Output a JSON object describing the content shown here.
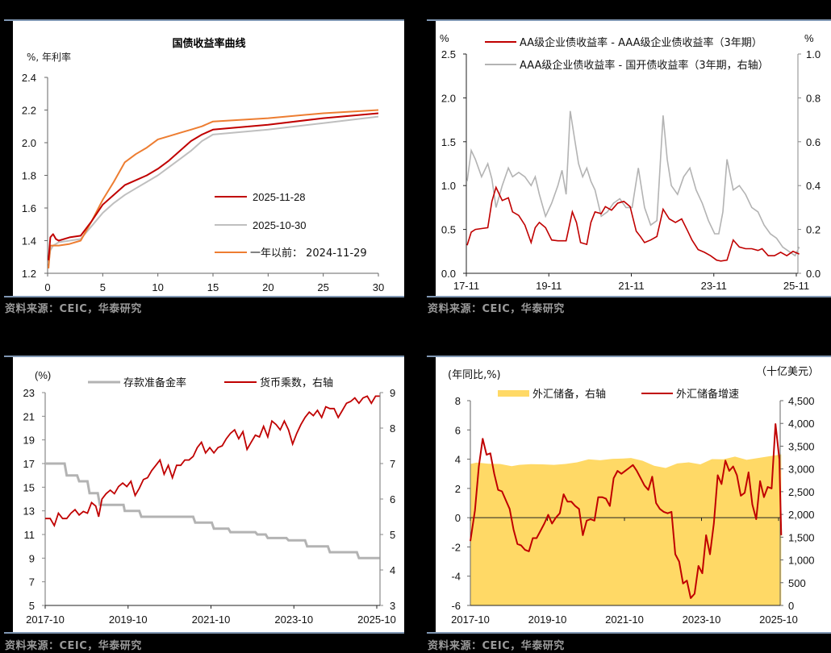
{
  "page": {
    "background": "#000000",
    "panel_background": "#ffffff",
    "rule_color": "#8097b3",
    "source_note": "资料来源：CEIC，华泰研究"
  },
  "chart_data": [
    {
      "id": "yield-curve",
      "type": "line",
      "title": "国债收益率曲线",
      "ylabel": "%, 年利率",
      "xlabel": "",
      "xlim": [
        0,
        30
      ],
      "ylim": [
        1.2,
        2.4
      ],
      "xticks": [
        0,
        5,
        10,
        15,
        20,
        25,
        30
      ],
      "yticks": [
        "1.2",
        "1.4",
        "1.6",
        "1.8",
        "2.0",
        "2.2",
        "2.4"
      ],
      "grid": false,
      "legend_position": "inside-right",
      "series": [
        {
          "name": "2025-11-28",
          "color": "#c00000",
          "x": [
            0.08,
            0.25,
            0.5,
            0.75,
            1,
            2,
            3,
            4,
            5,
            6,
            7,
            8,
            9,
            10,
            11,
            12,
            13,
            14,
            15,
            20,
            25,
            30
          ],
          "y": [
            1.28,
            1.42,
            1.44,
            1.41,
            1.4,
            1.42,
            1.43,
            1.52,
            1.62,
            1.68,
            1.74,
            1.77,
            1.8,
            1.84,
            1.89,
            1.95,
            2.01,
            2.05,
            2.08,
            2.11,
            2.15,
            2.18
          ]
        },
        {
          "name": "2025-10-30",
          "color": "#bfbfbf",
          "x": [
            0.08,
            0.25,
            0.5,
            0.75,
            1,
            2,
            3,
            4,
            5,
            6,
            7,
            8,
            9,
            10,
            11,
            12,
            13,
            14,
            15,
            20,
            25,
            30
          ],
          "y": [
            1.26,
            1.34,
            1.37,
            1.38,
            1.39,
            1.4,
            1.41,
            1.49,
            1.57,
            1.63,
            1.68,
            1.72,
            1.76,
            1.8,
            1.85,
            1.9,
            1.95,
            2.01,
            2.05,
            2.08,
            2.12,
            2.16
          ]
        },
        {
          "name": "一年以前： 2024-11-29",
          "color": "#ed7d31",
          "x": [
            0.08,
            0.25,
            0.5,
            0.75,
            1,
            2,
            3,
            4,
            5,
            6,
            7,
            8,
            9,
            10,
            11,
            12,
            13,
            14,
            15,
            20,
            25,
            30
          ],
          "y": [
            1.23,
            1.37,
            1.37,
            1.37,
            1.37,
            1.38,
            1.4,
            1.52,
            1.65,
            1.76,
            1.88,
            1.93,
            1.97,
            2.02,
            2.04,
            2.06,
            2.08,
            2.1,
            2.13,
            2.15,
            2.18,
            2.2
          ]
        }
      ]
    },
    {
      "id": "credit-spreads",
      "type": "line",
      "title": "",
      "ylabel": "%",
      "ylabel_right": "%",
      "ylim": [
        0,
        2.5
      ],
      "ylim_right": [
        0,
        1.0
      ],
      "yticks": [
        "0.0",
        "0.5",
        "1.0",
        "1.5",
        "2.0",
        "2.5"
      ],
      "yticks_right": [
        "0.0",
        "0.2",
        "0.4",
        "0.6",
        "0.8",
        "1.0"
      ],
      "categories": [
        "17-11",
        "19-11",
        "21-11",
        "23-11",
        "25-11"
      ],
      "grid": false,
      "legend_position": "top",
      "series": [
        {
          "name": "AA级企业债收益率 - AAA级企业债收益率（3年期）",
          "axis": "left",
          "color": "#c00000",
          "x": [
            2017.85,
            2017.95,
            2018.05,
            2018.2,
            2018.35,
            2018.45,
            2018.55,
            2018.7,
            2018.85,
            2018.95,
            2019.1,
            2019.25,
            2019.4,
            2019.5,
            2019.6,
            2019.75,
            2019.9,
            2020.05,
            2020.25,
            2020.4,
            2020.5,
            2020.6,
            2020.75,
            2020.85,
            2020.95,
            2021.1,
            2021.2,
            2021.35,
            2021.5,
            2021.65,
            2021.8,
            2021.95,
            2022.05,
            2022.15,
            2022.3,
            2022.45,
            2022.6,
            2022.75,
            2022.9,
            2023.05,
            2023.2,
            2023.3,
            2023.45,
            2023.6,
            2023.75,
            2023.9,
            2024.0,
            2024.15,
            2024.3,
            2024.45,
            2024.6,
            2024.75,
            2024.9,
            2025.0,
            2025.15,
            2025.3,
            2025.45,
            2025.6,
            2025.75,
            2025.9
          ],
          "y": [
            0.32,
            0.47,
            0.5,
            0.51,
            0.52,
            0.82,
            0.98,
            0.83,
            0.86,
            0.7,
            0.66,
            0.55,
            0.35,
            0.52,
            0.58,
            0.52,
            0.38,
            0.37,
            0.37,
            0.7,
            0.58,
            0.35,
            0.33,
            0.58,
            0.7,
            0.68,
            0.76,
            0.72,
            0.8,
            0.82,
            0.76,
            0.48,
            0.42,
            0.35,
            0.38,
            0.42,
            0.73,
            0.62,
            0.58,
            0.62,
            0.48,
            0.38,
            0.27,
            0.24,
            0.2,
            0.15,
            0.14,
            0.15,
            0.38,
            0.3,
            0.28,
            0.28,
            0.26,
            0.28,
            0.2,
            0.2,
            0.24,
            0.2,
            0.25,
            0.22
          ]
        },
        {
          "name": "AAA级企业债收益率 - 国开债收益率（3年期，右轴）",
          "axis": "right",
          "color": "#b3b3b3",
          "x": [
            2017.85,
            2017.95,
            2018.05,
            2018.2,
            2018.35,
            2018.45,
            2018.55,
            2018.7,
            2018.85,
            2018.95,
            2019.1,
            2019.25,
            2019.4,
            2019.5,
            2019.6,
            2019.75,
            2019.9,
            2020.05,
            2020.15,
            2020.25,
            2020.35,
            2020.45,
            2020.55,
            2020.65,
            2020.75,
            2020.85,
            2020.95,
            2021.1,
            2021.25,
            2021.4,
            2021.55,
            2021.7,
            2021.85,
            2022.0,
            2022.15,
            2022.3,
            2022.45,
            2022.6,
            2022.7,
            2022.8,
            2022.95,
            2023.1,
            2023.25,
            2023.4,
            2023.55,
            2023.7,
            2023.85,
            2023.95,
            2024.05,
            2024.15,
            2024.3,
            2024.45,
            2024.6,
            2024.75,
            2024.9,
            2025.05,
            2025.2,
            2025.35,
            2025.5,
            2025.65,
            2025.8,
            2025.9
          ],
          "y": [
            0.42,
            0.56,
            0.52,
            0.44,
            0.5,
            0.43,
            0.3,
            0.4,
            0.48,
            0.44,
            0.46,
            0.44,
            0.4,
            0.44,
            0.36,
            0.26,
            0.32,
            0.4,
            0.47,
            0.36,
            0.74,
            0.62,
            0.5,
            0.44,
            0.48,
            0.42,
            0.38,
            0.26,
            0.28,
            0.32,
            0.34,
            0.3,
            0.3,
            0.48,
            0.3,
            0.22,
            0.24,
            0.72,
            0.52,
            0.4,
            0.36,
            0.44,
            0.48,
            0.38,
            0.32,
            0.24,
            0.18,
            0.18,
            0.28,
            0.52,
            0.38,
            0.4,
            0.36,
            0.3,
            0.28,
            0.22,
            0.18,
            0.16,
            0.12,
            0.1,
            0.08,
            0.12
          ]
        }
      ]
    },
    {
      "id": "reserve-ratio-money-multiplier",
      "type": "line",
      "title": "",
      "ylabel": "(%)",
      "ylim": [
        5,
        23
      ],
      "ylim_right": [
        3,
        9
      ],
      "yticks": [
        "5",
        "7",
        "9",
        "11",
        "13",
        "15",
        "17",
        "19",
        "21",
        "23"
      ],
      "yticks_right": [
        "3",
        "4",
        "5",
        "6",
        "7",
        "8",
        "9"
      ],
      "categories": [
        "2017-10",
        "2019-10",
        "2021-10",
        "2023-10",
        "2025-10"
      ],
      "grid": false,
      "legend_position": "top",
      "series": [
        {
          "name": "存款准备金率",
          "axis": "left",
          "color": "#b3b3b3",
          "style": "step",
          "x": [
            2017.83,
            2018.3,
            2018.35,
            2018.6,
            2018.65,
            2018.85,
            2018.9,
            2019.1,
            2019.15,
            2019.72,
            2019.75,
            2020.1,
            2020.15,
            2021.4,
            2021.45,
            2021.85,
            2021.9,
            2022.25,
            2022.3,
            2022.9,
            2022.95,
            2023.15,
            2023.2,
            2023.65,
            2023.7,
            2024.1,
            2024.15,
            2024.65,
            2024.7,
            2025.35,
            2025.4,
            2025.9
          ],
          "y": [
            17,
            17,
            16,
            16,
            15.5,
            15.5,
            14.5,
            14.5,
            13.5,
            13.5,
            13,
            13,
            12.5,
            12.5,
            12,
            12,
            11.5,
            11.5,
            11.2,
            11.2,
            11,
            11,
            10.7,
            10.7,
            10.5,
            10.5,
            10,
            10,
            9.5,
            9.5,
            9,
            9
          ]
        },
        {
          "name": "货币乘数，右轴",
          "axis": "right",
          "color": "#c00000",
          "x": [
            2017.83,
            2017.95,
            2018.05,
            2018.15,
            2018.25,
            2018.35,
            2018.45,
            2018.55,
            2018.65,
            2018.75,
            2018.85,
            2018.95,
            2019.05,
            2019.12,
            2019.2,
            2019.3,
            2019.4,
            2019.5,
            2019.6,
            2019.7,
            2019.8,
            2019.9,
            2020.0,
            2020.1,
            2020.2,
            2020.3,
            2020.4,
            2020.5,
            2020.6,
            2020.7,
            2020.8,
            2020.9,
            2021.0,
            2021.1,
            2021.2,
            2021.3,
            2021.4,
            2021.5,
            2021.6,
            2021.7,
            2021.8,
            2021.9,
            2022.0,
            2022.1,
            2022.2,
            2022.3,
            2022.4,
            2022.5,
            2022.6,
            2022.7,
            2022.8,
            2022.9,
            2023.0,
            2023.1,
            2023.2,
            2023.3,
            2023.4,
            2023.5,
            2023.6,
            2023.7,
            2023.8,
            2023.9,
            2024.0,
            2024.1,
            2024.2,
            2024.3,
            2024.4,
            2024.5,
            2024.6,
            2024.7,
            2024.8,
            2024.9,
            2025.0,
            2025.1,
            2025.2,
            2025.3,
            2025.4,
            2025.5,
            2025.6,
            2025.7,
            2025.8,
            2025.9
          ],
          "y": [
            5.45,
            5.45,
            5.25,
            5.6,
            5.45,
            5.45,
            5.6,
            5.7,
            5.55,
            5.65,
            5.6,
            5.9,
            5.8,
            5.5,
            6.0,
            6.15,
            6.25,
            6.15,
            6.35,
            6.45,
            6.35,
            6.5,
            6.1,
            6.3,
            6.55,
            6.6,
            6.8,
            6.95,
            7.1,
            6.7,
            6.95,
            6.6,
            6.95,
            6.95,
            7.1,
            7.1,
            7.2,
            7.45,
            7.6,
            7.3,
            7.45,
            7.3,
            7.45,
            7.5,
            7.7,
            7.85,
            7.95,
            7.7,
            7.9,
            7.4,
            7.6,
            7.8,
            7.75,
            8.05,
            7.75,
            8.2,
            8.1,
            7.95,
            8.2,
            7.95,
            7.55,
            7.85,
            8.1,
            8.3,
            8.45,
            8.35,
            8.5,
            8.3,
            8.6,
            8.55,
            8.55,
            8.3,
            8.5,
            8.7,
            8.75,
            8.85,
            8.7,
            8.85,
            8.9,
            8.7,
            8.9,
            8.9
          ]
        }
      ]
    },
    {
      "id": "fx-reserves",
      "type": "line",
      "title": "",
      "ylabel": "(年同比,%)",
      "ylabel_right": "（十亿美元）",
      "ylim": [
        -6,
        8
      ],
      "ylim_right": [
        0,
        4500
      ],
      "yticks": [
        "-6",
        "-4",
        "-2",
        "0",
        "2",
        "4",
        "6",
        "8"
      ],
      "yticks_right": [
        "0",
        "500",
        "1,000",
        "1,500",
        "2,000",
        "2,500",
        "3,000",
        "3,500",
        "4,000",
        "4,500"
      ],
      "categories": [
        "2017-10",
        "2019-10",
        "2021-10",
        "2023-10",
        "2025-10"
      ],
      "grid": false,
      "legend_position": "top",
      "series": [
        {
          "name": "外汇储备，右轴",
          "axis": "right",
          "type": "area",
          "color": "#ffd966",
          "x": [
            2017.83,
            2018.0,
            2018.3,
            2018.6,
            2018.9,
            2019.1,
            2019.4,
            2019.7,
            2020.0,
            2020.3,
            2020.6,
            2020.9,
            2021.2,
            2021.5,
            2021.8,
            2022.0,
            2022.3,
            2022.6,
            2022.9,
            2023.2,
            2023.5,
            2023.8,
            2024.1,
            2024.4,
            2024.7,
            2025.0,
            2025.3,
            2025.6,
            2025.9
          ],
          "y": [
            3110,
            3140,
            3115,
            3110,
            3060,
            3090,
            3105,
            3100,
            3090,
            3110,
            3145,
            3210,
            3190,
            3220,
            3230,
            3240,
            3180,
            3070,
            3020,
            3120,
            3145,
            3100,
            3215,
            3210,
            3270,
            3200,
            3240,
            3280,
            3320
          ]
        },
        {
          "name": "外汇储备增速",
          "axis": "left",
          "type": "line",
          "color": "#c00000",
          "x": [
            2017.83,
            2017.95,
            2018.05,
            2018.15,
            2018.25,
            2018.35,
            2018.45,
            2018.55,
            2018.65,
            2018.75,
            2018.85,
            2018.95,
            2019.05,
            2019.15,
            2019.25,
            2019.35,
            2019.45,
            2019.55,
            2019.65,
            2019.75,
            2019.85,
            2019.95,
            2020.05,
            2020.15,
            2020.25,
            2020.35,
            2020.45,
            2020.55,
            2020.65,
            2020.75,
            2020.85,
            2020.95,
            2021.05,
            2021.15,
            2021.25,
            2021.35,
            2021.45,
            2021.55,
            2021.65,
            2021.75,
            2021.85,
            2021.95,
            2022.05,
            2022.15,
            2022.25,
            2022.35,
            2022.45,
            2022.55,
            2022.65,
            2022.75,
            2022.85,
            2022.95,
            2023.05,
            2023.15,
            2023.25,
            2023.35,
            2023.45,
            2023.55,
            2023.65,
            2023.75,
            2023.85,
            2023.95,
            2024.05,
            2024.15,
            2024.25,
            2024.35,
            2024.45,
            2024.55,
            2024.65,
            2024.75,
            2024.85,
            2024.95,
            2025.05,
            2025.15,
            2025.25,
            2025.35,
            2025.45,
            2025.55,
            2025.65,
            2025.75,
            2025.85,
            2025.9
          ],
          "y": [
            -1.6,
            0.5,
            3.5,
            5.4,
            4.3,
            4.4,
            3.0,
            1.9,
            1.8,
            1.2,
            0.6,
            -0.8,
            -1.8,
            -1.9,
            -2.2,
            -2.3,
            -1.4,
            -1.4,
            -0.9,
            -0.4,
            0.2,
            -0.4,
            0.0,
            0.3,
            1.6,
            1.1,
            1.1,
            0.8,
            0.6,
            -1.2,
            -0.2,
            -0.1,
            -0.2,
            1.4,
            1.4,
            1.3,
            0.8,
            2.7,
            3.2,
            3.0,
            3.2,
            3.4,
            3.6,
            3.2,
            2.7,
            2.2,
            1.9,
            2.8,
            1.0,
            0.6,
            0.4,
            0.3,
            0.4,
            -2.5,
            -3.0,
            -4.5,
            -4.3,
            -5.5,
            -5.2,
            -3.3,
            -3.8,
            -1.2,
            -2.5,
            -0.4,
            2.9,
            2.3,
            3.9,
            3.2,
            3.5,
            2.9,
            1.5,
            1.7,
            3.1,
            0.9,
            -0.1,
            2.5,
            1.4,
            2.1,
            2.0,
            6.4,
            4.0,
            -1.2
          ]
        }
      ]
    }
  ]
}
